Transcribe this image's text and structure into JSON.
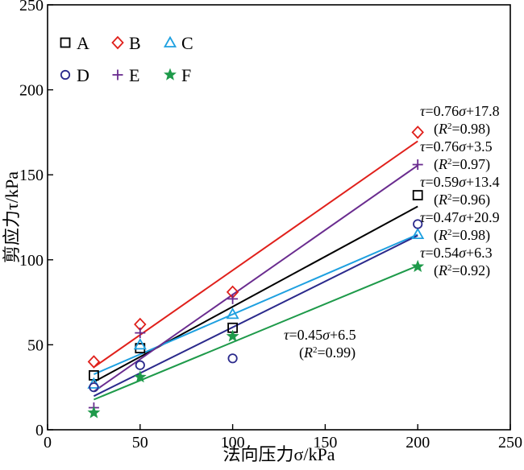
{
  "chart_data": {
    "type": "scatter",
    "xlabel": "法向压力σ/kPa",
    "ylabel": "剪应力τ/kPa",
    "xlim": [
      0,
      250
    ],
    "ylim": [
      0,
      250
    ],
    "xticks": [
      0,
      50,
      100,
      150,
      200,
      250
    ],
    "yticks": [
      0,
      50,
      100,
      150,
      200,
      250
    ],
    "grid": false,
    "legend_position": "top-left",
    "series": [
      {
        "name": "A",
        "marker": "square",
        "color": "#000000",
        "x": [
          25,
          50,
          100,
          200
        ],
        "y": [
          32,
          48,
          60,
          138
        ],
        "fit": {
          "slope": 0.59,
          "intercept": 13.4,
          "x_range": [
            25,
            200
          ]
        }
      },
      {
        "name": "B",
        "marker": "diamond",
        "color": "#e0201b",
        "x": [
          25,
          50,
          100,
          200
        ],
        "y": [
          40,
          62,
          81,
          175
        ],
        "fit": {
          "slope": 0.76,
          "intercept": 17.8,
          "x_range": [
            25,
            200
          ]
        }
      },
      {
        "name": "C",
        "marker": "triangle",
        "color": "#1ea0e0",
        "x": [
          25,
          50,
          100,
          200
        ],
        "y": [
          27,
          50,
          68,
          115
        ],
        "fit": {
          "slope": 0.47,
          "intercept": 20.9,
          "x_range": [
            25,
            200
          ]
        }
      },
      {
        "name": "D",
        "marker": "circle",
        "color": "#2b2a8c",
        "x": [
          25,
          50,
          100,
          200
        ],
        "y": [
          25,
          38,
          42,
          121
        ],
        "fit": {
          "slope": 0.54,
          "intercept": 6.3,
          "x_range": [
            25,
            200
          ]
        }
      },
      {
        "name": "E",
        "marker": "plus",
        "color": "#6a2c8f",
        "x": [
          25,
          50,
          100,
          200
        ],
        "y": [
          13,
          57,
          77,
          156
        ],
        "fit": {
          "slope": 0.76,
          "intercept": 3.5,
          "x_range": [
            25,
            200
          ]
        }
      },
      {
        "name": "F",
        "marker": "star",
        "color": "#1e9a4a",
        "x": [
          25,
          50,
          100,
          200
        ],
        "y": [
          10,
          31,
          55,
          96
        ],
        "fit": {
          "slope": 0.45,
          "intercept": 6.5,
          "x_range": [
            25,
            200
          ]
        }
      }
    ],
    "annotations": [
      {
        "eq": "τ=0.76σ+17.8",
        "r2": "(R²=0.98)"
      },
      {
        "eq": "τ=0.76σ+3.5",
        "r2": "(R²=0.97)"
      },
      {
        "eq": "τ=0.59σ+13.4",
        "r2": "(R²=0.96)"
      },
      {
        "eq": "τ=0.47σ+20.9",
        "r2": "(R²=0.98)"
      },
      {
        "eq": "τ=0.54σ+6.3",
        "r2": "(R²=0.92)"
      },
      {
        "eq": "τ=0.45σ+6.5",
        "r2": "(R²=0.99)"
      }
    ]
  }
}
